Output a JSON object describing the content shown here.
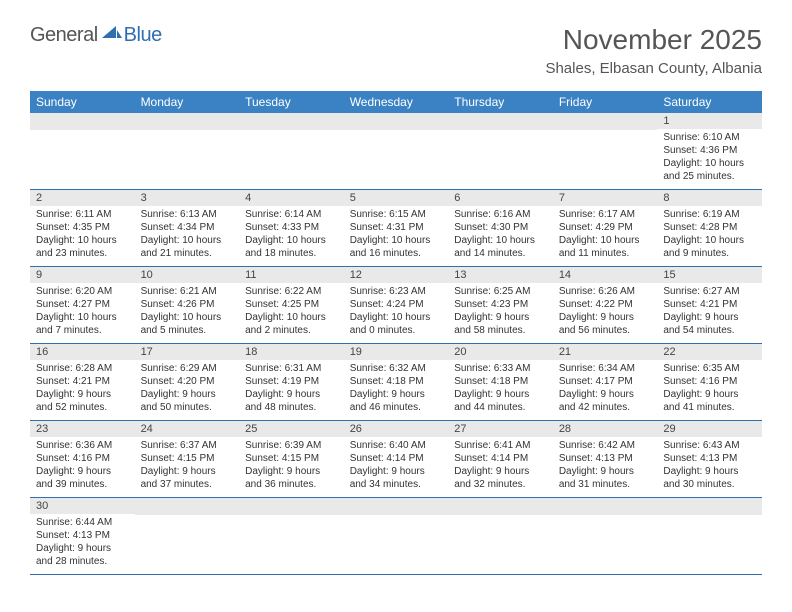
{
  "logo": {
    "general": "General",
    "blue": "Blue"
  },
  "title": "November 2025",
  "location": "Shales, Elbasan County, Albania",
  "headers": [
    "Sunday",
    "Monday",
    "Tuesday",
    "Wednesday",
    "Thursday",
    "Friday",
    "Saturday"
  ],
  "colors": {
    "header_bg": "#3b82c4",
    "header_text": "#ffffff",
    "row_border": "#2f6fb0",
    "daynum_bg": "#e9e9e9",
    "text": "#333333",
    "title_text": "#555555",
    "logo_gray": "#555555",
    "logo_blue": "#2f6fb0"
  },
  "weeks": [
    [
      {
        "n": "",
        "sr": "",
        "ss": "",
        "d1": "",
        "d2": ""
      },
      {
        "n": "",
        "sr": "",
        "ss": "",
        "d1": "",
        "d2": ""
      },
      {
        "n": "",
        "sr": "",
        "ss": "",
        "d1": "",
        "d2": ""
      },
      {
        "n": "",
        "sr": "",
        "ss": "",
        "d1": "",
        "d2": ""
      },
      {
        "n": "",
        "sr": "",
        "ss": "",
        "d1": "",
        "d2": ""
      },
      {
        "n": "",
        "sr": "",
        "ss": "",
        "d1": "",
        "d2": ""
      },
      {
        "n": "1",
        "sr": "Sunrise: 6:10 AM",
        "ss": "Sunset: 4:36 PM",
        "d1": "Daylight: 10 hours",
        "d2": "and 25 minutes."
      }
    ],
    [
      {
        "n": "2",
        "sr": "Sunrise: 6:11 AM",
        "ss": "Sunset: 4:35 PM",
        "d1": "Daylight: 10 hours",
        "d2": "and 23 minutes."
      },
      {
        "n": "3",
        "sr": "Sunrise: 6:13 AM",
        "ss": "Sunset: 4:34 PM",
        "d1": "Daylight: 10 hours",
        "d2": "and 21 minutes."
      },
      {
        "n": "4",
        "sr": "Sunrise: 6:14 AM",
        "ss": "Sunset: 4:33 PM",
        "d1": "Daylight: 10 hours",
        "d2": "and 18 minutes."
      },
      {
        "n": "5",
        "sr": "Sunrise: 6:15 AM",
        "ss": "Sunset: 4:31 PM",
        "d1": "Daylight: 10 hours",
        "d2": "and 16 minutes."
      },
      {
        "n": "6",
        "sr": "Sunrise: 6:16 AM",
        "ss": "Sunset: 4:30 PM",
        "d1": "Daylight: 10 hours",
        "d2": "and 14 minutes."
      },
      {
        "n": "7",
        "sr": "Sunrise: 6:17 AM",
        "ss": "Sunset: 4:29 PM",
        "d1": "Daylight: 10 hours",
        "d2": "and 11 minutes."
      },
      {
        "n": "8",
        "sr": "Sunrise: 6:19 AM",
        "ss": "Sunset: 4:28 PM",
        "d1": "Daylight: 10 hours",
        "d2": "and 9 minutes."
      }
    ],
    [
      {
        "n": "9",
        "sr": "Sunrise: 6:20 AM",
        "ss": "Sunset: 4:27 PM",
        "d1": "Daylight: 10 hours",
        "d2": "and 7 minutes."
      },
      {
        "n": "10",
        "sr": "Sunrise: 6:21 AM",
        "ss": "Sunset: 4:26 PM",
        "d1": "Daylight: 10 hours",
        "d2": "and 5 minutes."
      },
      {
        "n": "11",
        "sr": "Sunrise: 6:22 AM",
        "ss": "Sunset: 4:25 PM",
        "d1": "Daylight: 10 hours",
        "d2": "and 2 minutes."
      },
      {
        "n": "12",
        "sr": "Sunrise: 6:23 AM",
        "ss": "Sunset: 4:24 PM",
        "d1": "Daylight: 10 hours",
        "d2": "and 0 minutes."
      },
      {
        "n": "13",
        "sr": "Sunrise: 6:25 AM",
        "ss": "Sunset: 4:23 PM",
        "d1": "Daylight: 9 hours",
        "d2": "and 58 minutes."
      },
      {
        "n": "14",
        "sr": "Sunrise: 6:26 AM",
        "ss": "Sunset: 4:22 PM",
        "d1": "Daylight: 9 hours",
        "d2": "and 56 minutes."
      },
      {
        "n": "15",
        "sr": "Sunrise: 6:27 AM",
        "ss": "Sunset: 4:21 PM",
        "d1": "Daylight: 9 hours",
        "d2": "and 54 minutes."
      }
    ],
    [
      {
        "n": "16",
        "sr": "Sunrise: 6:28 AM",
        "ss": "Sunset: 4:21 PM",
        "d1": "Daylight: 9 hours",
        "d2": "and 52 minutes."
      },
      {
        "n": "17",
        "sr": "Sunrise: 6:29 AM",
        "ss": "Sunset: 4:20 PM",
        "d1": "Daylight: 9 hours",
        "d2": "and 50 minutes."
      },
      {
        "n": "18",
        "sr": "Sunrise: 6:31 AM",
        "ss": "Sunset: 4:19 PM",
        "d1": "Daylight: 9 hours",
        "d2": "and 48 minutes."
      },
      {
        "n": "19",
        "sr": "Sunrise: 6:32 AM",
        "ss": "Sunset: 4:18 PM",
        "d1": "Daylight: 9 hours",
        "d2": "and 46 minutes."
      },
      {
        "n": "20",
        "sr": "Sunrise: 6:33 AM",
        "ss": "Sunset: 4:18 PM",
        "d1": "Daylight: 9 hours",
        "d2": "and 44 minutes."
      },
      {
        "n": "21",
        "sr": "Sunrise: 6:34 AM",
        "ss": "Sunset: 4:17 PM",
        "d1": "Daylight: 9 hours",
        "d2": "and 42 minutes."
      },
      {
        "n": "22",
        "sr": "Sunrise: 6:35 AM",
        "ss": "Sunset: 4:16 PM",
        "d1": "Daylight: 9 hours",
        "d2": "and 41 minutes."
      }
    ],
    [
      {
        "n": "23",
        "sr": "Sunrise: 6:36 AM",
        "ss": "Sunset: 4:16 PM",
        "d1": "Daylight: 9 hours",
        "d2": "and 39 minutes."
      },
      {
        "n": "24",
        "sr": "Sunrise: 6:37 AM",
        "ss": "Sunset: 4:15 PM",
        "d1": "Daylight: 9 hours",
        "d2": "and 37 minutes."
      },
      {
        "n": "25",
        "sr": "Sunrise: 6:39 AM",
        "ss": "Sunset: 4:15 PM",
        "d1": "Daylight: 9 hours",
        "d2": "and 36 minutes."
      },
      {
        "n": "26",
        "sr": "Sunrise: 6:40 AM",
        "ss": "Sunset: 4:14 PM",
        "d1": "Daylight: 9 hours",
        "d2": "and 34 minutes."
      },
      {
        "n": "27",
        "sr": "Sunrise: 6:41 AM",
        "ss": "Sunset: 4:14 PM",
        "d1": "Daylight: 9 hours",
        "d2": "and 32 minutes."
      },
      {
        "n": "28",
        "sr": "Sunrise: 6:42 AM",
        "ss": "Sunset: 4:13 PM",
        "d1": "Daylight: 9 hours",
        "d2": "and 31 minutes."
      },
      {
        "n": "29",
        "sr": "Sunrise: 6:43 AM",
        "ss": "Sunset: 4:13 PM",
        "d1": "Daylight: 9 hours",
        "d2": "and 30 minutes."
      }
    ],
    [
      {
        "n": "30",
        "sr": "Sunrise: 6:44 AM",
        "ss": "Sunset: 4:13 PM",
        "d1": "Daylight: 9 hours",
        "d2": "and 28 minutes."
      },
      {
        "n": "",
        "sr": "",
        "ss": "",
        "d1": "",
        "d2": ""
      },
      {
        "n": "",
        "sr": "",
        "ss": "",
        "d1": "",
        "d2": ""
      },
      {
        "n": "",
        "sr": "",
        "ss": "",
        "d1": "",
        "d2": ""
      },
      {
        "n": "",
        "sr": "",
        "ss": "",
        "d1": "",
        "d2": ""
      },
      {
        "n": "",
        "sr": "",
        "ss": "",
        "d1": "",
        "d2": ""
      },
      {
        "n": "",
        "sr": "",
        "ss": "",
        "d1": "",
        "d2": ""
      }
    ]
  ]
}
